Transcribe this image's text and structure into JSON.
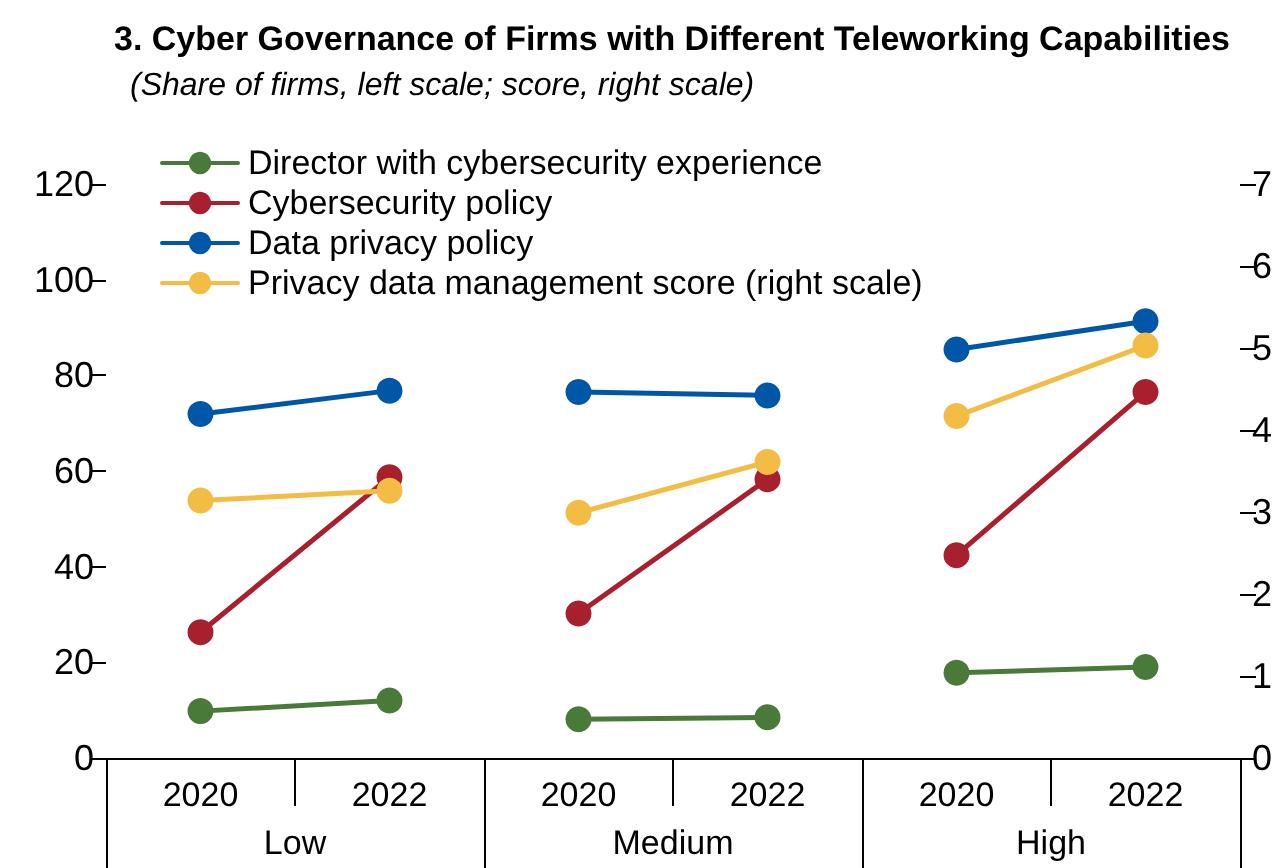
{
  "chart_data": {
    "type": "line",
    "title": "3. Cyber Governance of Firms with Different Teleworking Capabilities",
    "subtitle": "(Share of firms, left scale; score, right scale)",
    "categories": [
      "2020",
      "2022",
      "2020",
      "2022",
      "2020",
      "2022"
    ],
    "annotations": [
      "Low",
      "Medium",
      "High"
    ],
    "series": [
      {
        "name": "Director with cybersecurity experience",
        "color": "#4a7a3a",
        "values": [
          9.8,
          12.0,
          8.1,
          8.5,
          17.8,
          19.0
        ]
      },
      {
        "name": "Cybersecurity policy",
        "color": "#a81f2e",
        "values": [
          26.3,
          58.7,
          30.2,
          58.3,
          42.4,
          76.5
        ]
      },
      {
        "name": "Data privacy policy",
        "color": "#0057a8",
        "values": [
          71.9,
          76.8,
          76.5,
          75.8,
          85.4,
          91.3
        ]
      },
      {
        "name": "Privacy data management score (right scale)",
        "color": "#f2bc45",
        "axis": "y2",
        "values": [
          3.14,
          3.26,
          2.99,
          3.61,
          4.17,
          5.03
        ]
      }
    ],
    "ylim": [
      0,
      120
    ],
    "yticks": [
      0,
      20,
      40,
      60,
      80,
      100,
      120
    ],
    "y2lim": [
      0,
      7
    ],
    "y2ticks": [
      0,
      1,
      2,
      3,
      4,
      5,
      6,
      7
    ],
    "grid": false,
    "legend": "top left",
    "marker": "circle",
    "line_style": "solid"
  }
}
